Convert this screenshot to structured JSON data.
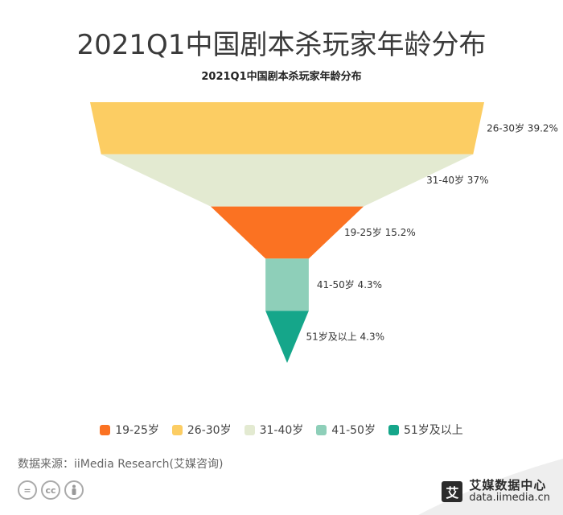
{
  "header": {
    "title": "2021Q1中国剧本杀玩家年龄分布"
  },
  "chart_data": {
    "type": "funnel",
    "title": "2021Q1中国剧本杀玩家年龄分布",
    "unit": "%",
    "sort": "descending",
    "series": [
      {
        "name": "26-30岁",
        "value": 39.2,
        "label": "26-30岁 39.2%",
        "color": "#fccd63"
      },
      {
        "name": "31-40岁",
        "value": 37,
        "label": "31-40岁 37%",
        "color": "#e3ead1"
      },
      {
        "name": "19-25岁",
        "value": 15.2,
        "label": "19-25岁 15.2%",
        "color": "#fb7222"
      },
      {
        "name": "41-50岁",
        "value": 4.3,
        "label": "41-50岁 4.3%",
        "color": "#8ecfb9"
      },
      {
        "name": "51岁及以上",
        "value": 4.3,
        "label": "51岁及以上 4.3%",
        "color": "#15a68a"
      }
    ],
    "legend": {
      "placement": "bottom",
      "items": [
        {
          "label": "19-25岁",
          "color": "#fb7222"
        },
        {
          "label": "26-30岁",
          "color": "#fccd63"
        },
        {
          "label": "31-40岁",
          "color": "#e3ead1"
        },
        {
          "label": "41-50岁",
          "color": "#8ecfb9"
        },
        {
          "label": "51岁及以上",
          "color": "#15a68a"
        }
      ]
    }
  },
  "footer": {
    "source": "数据来源：iiMedia Research(艾媒咨询)",
    "brand_name": "艾媒数据中心",
    "brand_url": "data.iimedia.cn",
    "brand_logo": "艾",
    "license_icons": [
      "equal-icon",
      "cc-icon",
      "person-icon"
    ]
  }
}
